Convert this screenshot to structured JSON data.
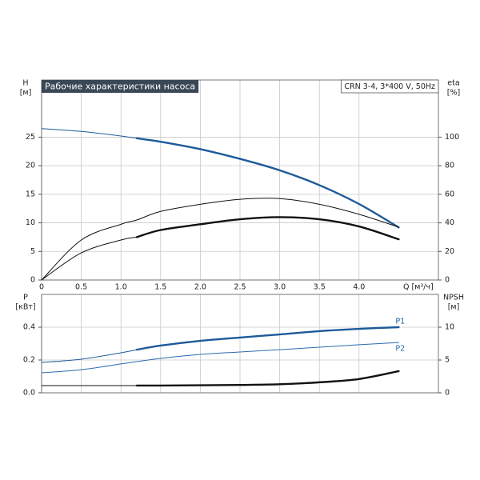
{
  "chart_data": [
    {
      "type": "line",
      "title": "Рабочие характеристики насоса",
      "subtitle": "CRN 3-4, 3*400 V, 50Hz",
      "ylabel": "H",
      "yunit": "[м]",
      "y2label": "eta",
      "y2unit": "[%]",
      "xlabel": "Q [м³/ч]",
      "xlim": [
        0,
        5
      ],
      "xticks": [
        0,
        0.5,
        {
          "value": 1,
          "label": "1.0"
        },
        1.5,
        {
          "value": 2,
          "label": "2.0"
        },
        2.5,
        {
          "value": 3,
          "label": "3.0"
        },
        3.5,
        {
          "value": 4,
          "label": "4.0"
        }
      ],
      "ylim": [
        0,
        35
      ],
      "yticks": [
        0,
        5,
        10,
        15,
        20,
        25
      ],
      "y2lim": [
        0,
        140
      ],
      "y2ticks": [
        0,
        20,
        40,
        60,
        80,
        100
      ],
      "grid": true,
      "bold_from": 1.2,
      "x": [
        0,
        0.5,
        1.0,
        1.2,
        1.5,
        2.0,
        2.5,
        3.0,
        3.5,
        4.0,
        4.5
      ],
      "series": [
        {
          "color": "#1d5a99",
          "bold": true,
          "values": [
            26.5,
            26.0,
            25.2,
            24.8,
            24.2,
            22.9,
            21.2,
            19.2,
            16.6,
            13.3,
            9.2
          ]
        },
        {
          "color": "#111111",
          "bold": false,
          "axis": "y2",
          "values": [
            0,
            28,
            39,
            42,
            48,
            53,
            56.5,
            57,
            53,
            46,
            37
          ]
        },
        {
          "color": "#111111",
          "bold": true,
          "axis": "y2",
          "values": [
            0,
            19,
            28,
            30,
            35,
            39,
            42.5,
            44,
            42.5,
            37.5,
            28.5
          ]
        }
      ]
    },
    {
      "type": "line",
      "ylabel": "P",
      "yunit": "[кВт]",
      "y2label": "NPSH",
      "y2unit": "[м]",
      "xlim": [
        0,
        5
      ],
      "ylim": [
        0,
        0.6
      ],
      "yticks": [
        {
          "value": 0,
          "label": "0.0"
        },
        0.2,
        0.4
      ],
      "y2lim": [
        0,
        15
      ],
      "y2ticks": [
        0,
        5,
        10
      ],
      "grid": true,
      "bold_from": 1.2,
      "x": [
        0,
        0.5,
        1.0,
        1.2,
        1.5,
        2.0,
        2.5,
        3.0,
        3.5,
        4.0,
        4.5
      ],
      "series": [
        {
          "name": "P1",
          "color": "#1d5a99",
          "bold": true,
          "values": [
            0.185,
            0.205,
            0.244,
            0.263,
            0.288,
            0.317,
            0.337,
            0.356,
            0.376,
            0.39,
            0.4
          ]
        },
        {
          "name": "P2",
          "color": "#2a6bb0",
          "bold": false,
          "values": [
            0.122,
            0.141,
            0.176,
            0.19,
            0.21,
            0.234,
            0.249,
            0.263,
            0.278,
            0.293,
            0.307
          ]
        },
        {
          "color": "#111111",
          "bold": true,
          "axis": "y2",
          "values": [
            1.1,
            1.1,
            1.1,
            1.1,
            1.1,
            1.15,
            1.2,
            1.3,
            1.6,
            2.1,
            3.3
          ]
        }
      ]
    }
  ]
}
